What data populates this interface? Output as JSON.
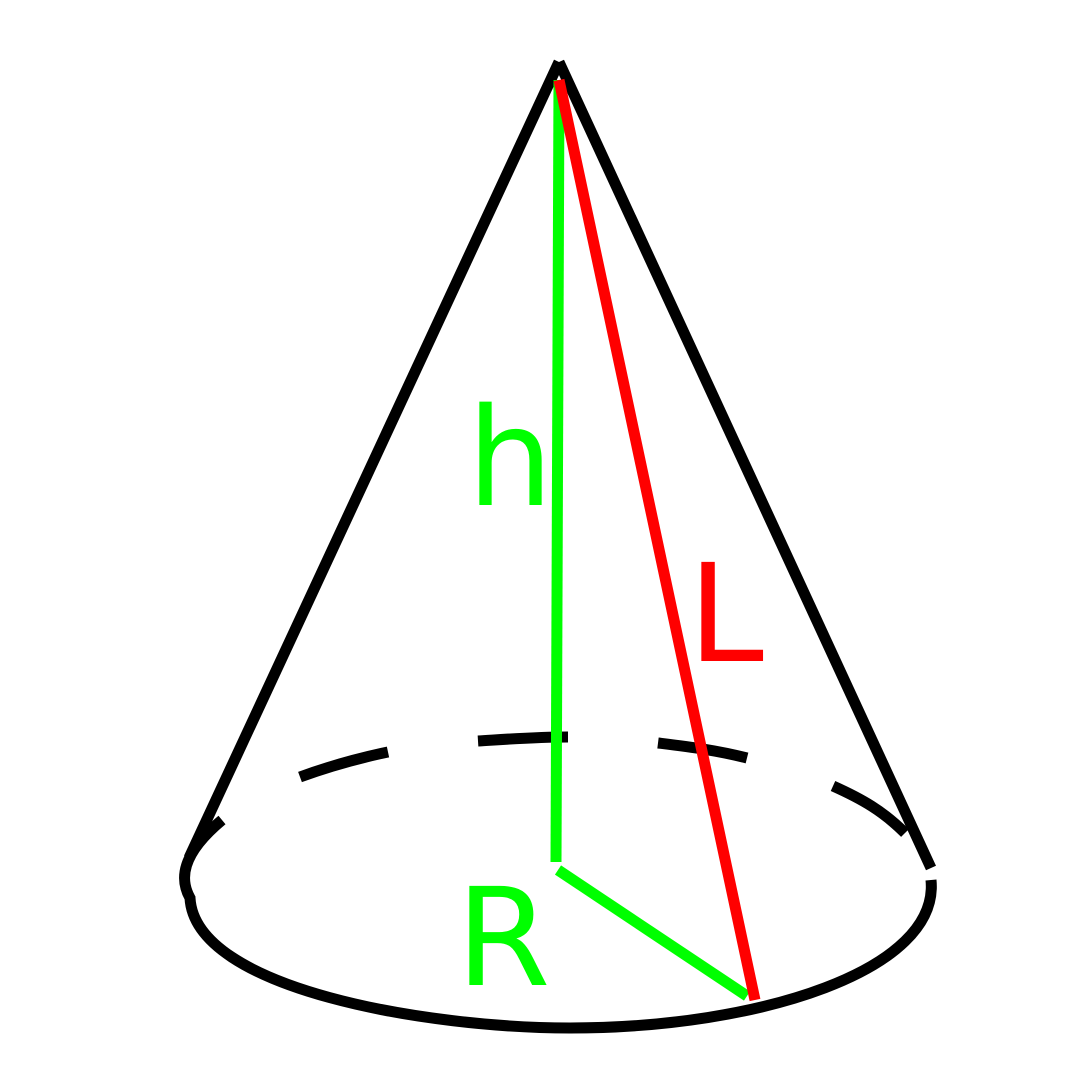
{
  "labels": {
    "height": "h",
    "slant": "L",
    "radius": "R"
  },
  "colors": {
    "outline": "#000000",
    "height": "#00ff00",
    "radius": "#00ff00",
    "slant": "#ff0000",
    "background": "#ffffff"
  }
}
